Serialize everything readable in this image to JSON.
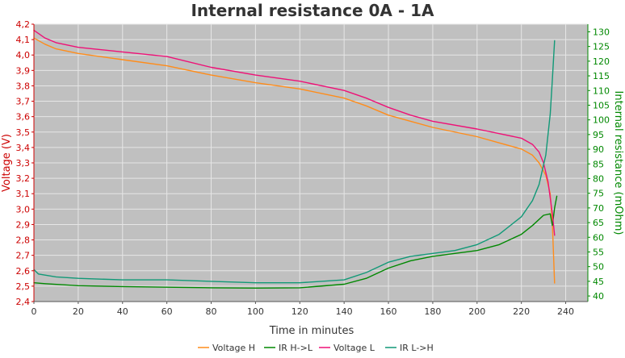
{
  "chart_data": {
    "type": "line",
    "title": "Internal resistance  0A - 1A",
    "xlabel": "Time in minutes",
    "ylabel_left": "Voltage (V)",
    "ylabel_right": "Internal resistance (mOhm)",
    "xlim": [
      0,
      250
    ],
    "ylim_left": [
      2.4,
      4.2
    ],
    "ylim_right": [
      38.1,
      132.6
    ],
    "x_ticks": [
      "0",
      "20",
      "40",
      "60",
      "80",
      "100",
      "120",
      "140",
      "160",
      "180",
      "200",
      "220",
      "240"
    ],
    "y_left_ticks": [
      "2,4",
      "2,5",
      "2,6",
      "2,7",
      "2,8",
      "2,9",
      "3,0",
      "3,1",
      "3,2",
      "3,3",
      "3,4",
      "3,5",
      "3,6",
      "3,7",
      "3,8",
      "3,9",
      "4,0",
      "4,1",
      "4,2"
    ],
    "y_right_ticks": [
      "40",
      "45",
      "50",
      "55",
      "60",
      "65",
      "70",
      "75",
      "80",
      "85",
      "90",
      "95",
      "100",
      "105",
      "110",
      "115",
      "120",
      "125",
      "130"
    ],
    "grid": true,
    "legend_position": "bottom",
    "colors": {
      "plot_bg": "#c0c0c0",
      "grid": "#e6e6e6",
      "left_axis": "#cc0000",
      "right_axis": "#008800",
      "x_axis": "#333333"
    },
    "series": [
      {
        "name": "Voltage H",
        "axis": "left",
        "color": "#ff8c1a",
        "x": [
          0,
          5,
          10,
          20,
          40,
          60,
          80,
          100,
          120,
          140,
          150,
          160,
          170,
          180,
          200,
          210,
          220,
          225,
          228,
          231,
          233,
          234,
          235
        ],
        "y": [
          4.11,
          4.07,
          4.04,
          4.01,
          3.97,
          3.93,
          3.87,
          3.82,
          3.78,
          3.72,
          3.67,
          3.61,
          3.57,
          3.53,
          3.47,
          3.43,
          3.39,
          3.35,
          3.3,
          3.22,
          3.1,
          2.9,
          2.52
        ]
      },
      {
        "name": "IR H->L",
        "axis": "right",
        "color": "#008800",
        "x": [
          0,
          5,
          20,
          40,
          60,
          80,
          100,
          120,
          140,
          150,
          160,
          170,
          180,
          200,
          210,
          220,
          225,
          230,
          233,
          234,
          235,
          236
        ],
        "y": [
          44.5,
          44.2,
          43.5,
          43.2,
          43,
          42.8,
          42.7,
          42.8,
          44,
          46,
          49.5,
          52,
          53.5,
          55.5,
          57.5,
          61,
          64,
          67.5,
          68,
          64,
          70,
          74
        ]
      },
      {
        "name": "Voltage L",
        "axis": "left",
        "color": "#ee1177",
        "x": [
          0,
          5,
          10,
          20,
          40,
          60,
          80,
          100,
          120,
          140,
          150,
          160,
          170,
          180,
          200,
          210,
          220,
          225,
          228,
          230,
          232,
          234,
          235
        ],
        "y": [
          4.16,
          4.11,
          4.08,
          4.05,
          4.02,
          3.99,
          3.92,
          3.87,
          3.83,
          3.77,
          3.72,
          3.66,
          3.61,
          3.57,
          3.52,
          3.49,
          3.46,
          3.42,
          3.37,
          3.3,
          3.18,
          2.97,
          2.83
        ]
      },
      {
        "name": "IR L->H",
        "axis": "right",
        "color": "#119977",
        "x": [
          0,
          2,
          10,
          20,
          40,
          60,
          80,
          100,
          120,
          140,
          150,
          160,
          170,
          180,
          190,
          200,
          210,
          220,
          225,
          228,
          231,
          233,
          234,
          235
        ],
        "y": [
          49,
          47.5,
          46.5,
          46,
          45.5,
          45.5,
          45,
          44.5,
          44.5,
          45.5,
          48,
          51.5,
          53.5,
          54.5,
          55.5,
          57.5,
          61,
          67,
          72.5,
          78,
          88,
          102,
          114,
          127
        ]
      }
    ]
  }
}
